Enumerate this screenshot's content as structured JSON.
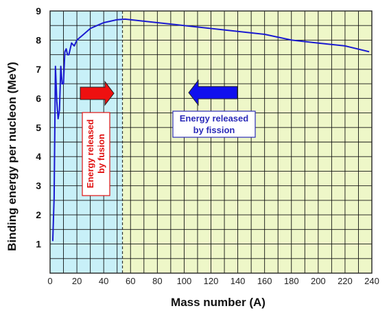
{
  "chart_data": {
    "type": "line",
    "xlabel": "Mass number (A)",
    "ylabel": "Binding energy per nucleon (MeV)",
    "xlim": [
      0,
      240
    ],
    "ylim": [
      0,
      9
    ],
    "xticks": [
      0,
      20,
      40,
      60,
      80,
      100,
      120,
      140,
      160,
      180,
      200,
      220,
      240
    ],
    "yticks": [
      1,
      2,
      3,
      4,
      5,
      6,
      7,
      8,
      9
    ],
    "grid": true,
    "divider_x": 54,
    "series": [
      {
        "color": "#1a1ad0",
        "x": [
          2,
          3,
          4,
          5,
          6,
          7,
          8,
          9,
          10,
          11,
          12,
          13,
          14,
          16,
          18,
          20,
          25,
          30,
          35,
          40,
          45,
          50,
          56,
          60,
          80,
          100,
          120,
          140,
          160,
          180,
          200,
          220,
          238
        ],
        "y": [
          1.1,
          2.6,
          7.1,
          5.9,
          5.3,
          5.6,
          7.1,
          6.5,
          6.5,
          7.6,
          7.7,
          7.5,
          7.5,
          7.9,
          7.8,
          8.0,
          8.2,
          8.4,
          8.5,
          8.6,
          8.65,
          8.7,
          8.72,
          8.7,
          8.6,
          8.5,
          8.4,
          8.3,
          8.2,
          8.0,
          7.9,
          7.8,
          7.6
        ]
      }
    ],
    "regions": [
      {
        "name": "fusion",
        "x_from": 0,
        "x_to": 54,
        "color": "#c8f0f8"
      },
      {
        "name": "fission",
        "x_from": 54,
        "x_to": 240,
        "color": "#eef7c8"
      }
    ],
    "annotations": {
      "fusion_label": [
        "Energy released",
        "by fusion"
      ],
      "fission_label": [
        "Energy released",
        "by fission"
      ],
      "fusion_arrow_color": "#ee1010",
      "fission_arrow_color": "#1010ee"
    }
  }
}
